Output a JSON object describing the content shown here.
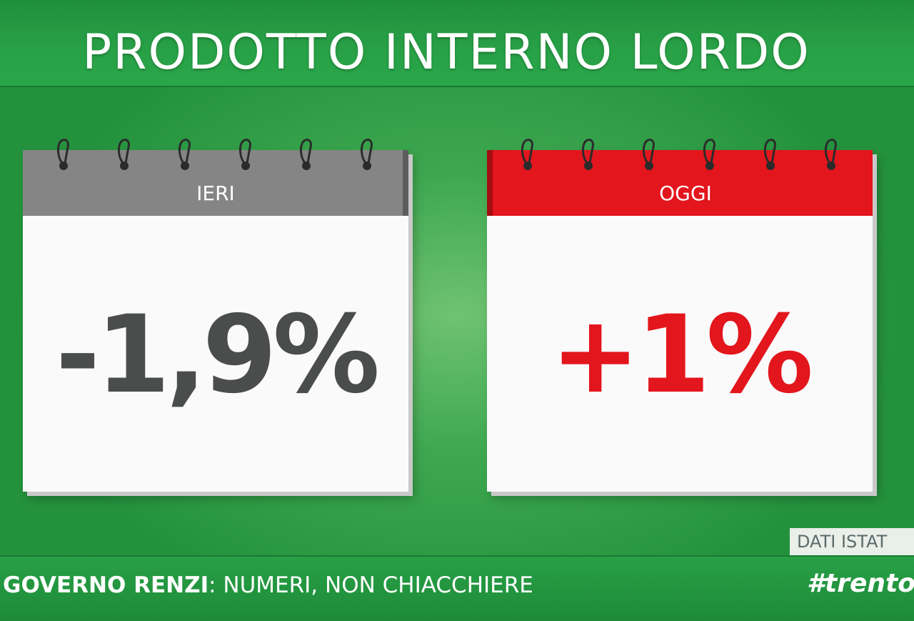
{
  "title": "PRODOTTO INTERNO LORDO",
  "calendars": {
    "ieri": {
      "label": "IERI",
      "value": "-1,9%",
      "header_color": "#858585",
      "value_color": "#4b4c4c"
    },
    "oggi": {
      "label": "OGGI",
      "value": "+1%",
      "header_color": "#e3151d",
      "value_color": "#e3151d"
    }
  },
  "source": "DATI ISTAT",
  "footer": {
    "slogan_strong": "GOVERNO RENZI",
    "slogan_rest": ": NUMERI, NON CHIACCHIERE",
    "hashtag": "#trento"
  },
  "colors": {
    "background_green": "#3ea850",
    "ring": "#2b2b2b"
  },
  "icons": [
    "spiral-ring-icon"
  ]
}
